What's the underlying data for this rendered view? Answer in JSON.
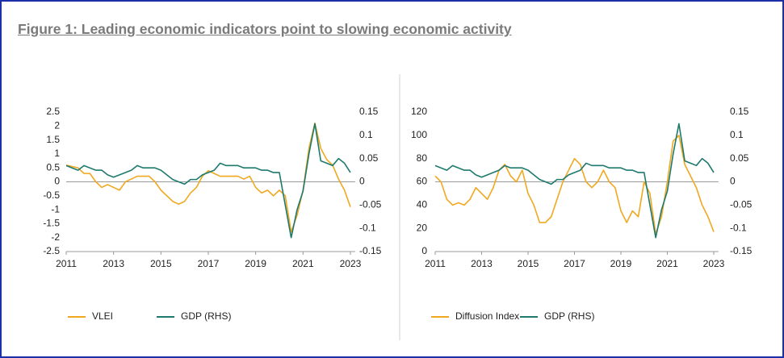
{
  "title": "Figure 1: Leading economic indicators point to slowing economic activity",
  "chart_data": [
    {
      "type": "line",
      "x": [
        2011,
        2011.25,
        2011.5,
        2011.75,
        2012,
        2012.25,
        2012.5,
        2012.75,
        2013,
        2013.25,
        2013.5,
        2013.75,
        2014,
        2014.25,
        2014.5,
        2014.75,
        2015,
        2015.25,
        2015.5,
        2015.75,
        2016,
        2016.25,
        2016.5,
        2016.75,
        2017,
        2017.25,
        2017.5,
        2017.75,
        2018,
        2018.25,
        2018.5,
        2018.75,
        2019,
        2019.25,
        2019.5,
        2019.75,
        2020,
        2020.25,
        2020.5,
        2020.75,
        2021,
        2021.25,
        2021.5,
        2021.75,
        2022,
        2022.25,
        2022.5,
        2022.75,
        2023
      ],
      "series": [
        {
          "name": "VLEI",
          "color": "#f0a820",
          "values": [
            0.6,
            0.55,
            0.5,
            0.3,
            0.3,
            0.0,
            -0.2,
            -0.1,
            -0.2,
            -0.3,
            0.0,
            0.1,
            0.2,
            0.2,
            0.2,
            0.0,
            -0.3,
            -0.5,
            -0.7,
            -0.8,
            -0.7,
            -0.4,
            -0.2,
            0.2,
            0.4,
            0.3,
            0.2,
            0.2,
            0.2,
            0.2,
            0.1,
            0.2,
            -0.2,
            -0.4,
            -0.3,
            -0.5,
            -0.3,
            -0.5,
            -1.8,
            -1.2,
            -0.3,
            1.2,
            2.1,
            1.2,
            0.8,
            0.6,
            0.1,
            -0.3,
            -0.9
          ]
        },
        {
          "name": "GDP (RHS)",
          "color": "#1f7a6e",
          "axis": "y2",
          "values": [
            0.035,
            0.03,
            0.025,
            0.035,
            0.03,
            0.025,
            0.025,
            0.015,
            0.01,
            0.015,
            0.02,
            0.025,
            0.035,
            0.03,
            0.03,
            0.03,
            0.025,
            0.015,
            0.005,
            0.0,
            -0.005,
            0.005,
            0.005,
            0.015,
            0.02,
            0.025,
            0.04,
            0.035,
            0.035,
            0.035,
            0.03,
            0.03,
            0.03,
            0.025,
            0.025,
            0.02,
            0.02,
            -0.05,
            -0.12,
            -0.06,
            -0.02,
            0.06,
            0.125,
            0.045,
            0.04,
            0.035,
            0.05,
            0.04,
            0.02
          ]
        }
      ],
      "xlim": [
        2011,
        2023.2
      ],
      "xticks": [
        2011,
        2013,
        2015,
        2017,
        2019,
        2021,
        2023
      ],
      "ylim": [
        -2.5,
        2.5
      ],
      "yticks": [
        -2.5,
        -2,
        -1.5,
        -1,
        -0.5,
        0,
        0.5,
        1,
        1.5,
        2,
        2.5
      ],
      "y2lim": [
        -0.15,
        0.15
      ],
      "y2ticks": [
        -0.15,
        -0.1,
        -0.05,
        0,
        0.05,
        0.1,
        0.15
      ]
    },
    {
      "type": "line",
      "x": [
        2011,
        2011.25,
        2011.5,
        2011.75,
        2012,
        2012.25,
        2012.5,
        2012.75,
        2013,
        2013.25,
        2013.5,
        2013.75,
        2014,
        2014.25,
        2014.5,
        2014.75,
        2015,
        2015.25,
        2015.5,
        2015.75,
        2016,
        2016.25,
        2016.5,
        2016.75,
        2017,
        2017.25,
        2017.5,
        2017.75,
        2018,
        2018.25,
        2018.5,
        2018.75,
        2019,
        2019.25,
        2019.5,
        2019.75,
        2020,
        2020.25,
        2020.5,
        2020.75,
        2021,
        2021.25,
        2021.5,
        2021.75,
        2022,
        2022.25,
        2022.5,
        2022.75,
        2023
      ],
      "series": [
        {
          "name": "Diffusion Index",
          "color": "#f0a820",
          "values": [
            65,
            60,
            45,
            40,
            42,
            40,
            45,
            55,
            50,
            45,
            55,
            70,
            75,
            65,
            60,
            70,
            50,
            40,
            25,
            25,
            30,
            45,
            60,
            70,
            80,
            75,
            60,
            55,
            60,
            70,
            60,
            55,
            35,
            25,
            35,
            30,
            60,
            50,
            15,
            30,
            60,
            95,
            100,
            75,
            65,
            55,
            40,
            30,
            17
          ]
        },
        {
          "name": "GDP (RHS)",
          "color": "#1f7a6e",
          "axis": "y2",
          "values": [
            0.035,
            0.03,
            0.025,
            0.035,
            0.03,
            0.025,
            0.025,
            0.015,
            0.01,
            0.015,
            0.02,
            0.025,
            0.035,
            0.03,
            0.03,
            0.03,
            0.025,
            0.015,
            0.005,
            0.0,
            -0.005,
            0.005,
            0.005,
            0.015,
            0.02,
            0.025,
            0.04,
            0.035,
            0.035,
            0.035,
            0.03,
            0.03,
            0.03,
            0.025,
            0.025,
            0.02,
            0.02,
            -0.05,
            -0.12,
            -0.06,
            -0.02,
            0.06,
            0.125,
            0.045,
            0.04,
            0.035,
            0.05,
            0.04,
            0.02
          ]
        }
      ],
      "xlim": [
        2011,
        2023.2
      ],
      "xticks": [
        2011,
        2013,
        2015,
        2017,
        2019,
        2021,
        2023
      ],
      "ylim": [
        0,
        120
      ],
      "yticks": [
        0,
        20,
        40,
        60,
        80,
        100,
        120
      ],
      "y2lim": [
        -0.15,
        0.15
      ],
      "y2ticks": [
        -0.15,
        -0.1,
        -0.05,
        0,
        0.05,
        0.1,
        0.15
      ]
    }
  ]
}
